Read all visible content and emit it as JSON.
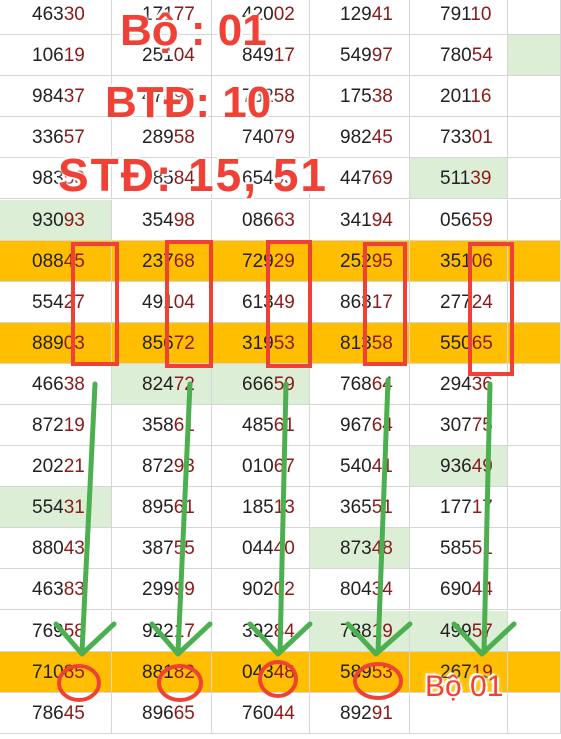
{
  "rows": [
    [
      "46330",
      "17177",
      "42002",
      "12941",
      "79110"
    ],
    [
      "10619",
      "25104",
      "84917",
      "54997",
      "78054"
    ],
    [
      "98437",
      "47895",
      "78258",
      "17538",
      "20116"
    ],
    [
      "33657",
      "28958",
      "74079",
      "98245",
      "73301"
    ],
    [
      "98353",
      "88584",
      "65493",
      "44769",
      "51139"
    ],
    [
      "93093",
      "35498",
      "08663",
      "34194",
      "05659"
    ],
    [
      "08845",
      "23768",
      "72929",
      "25295",
      "35106"
    ],
    [
      "55427",
      "49104",
      "61349",
      "86317",
      "27724"
    ],
    [
      "88903",
      "85672",
      "31953",
      "81358",
      "55065"
    ],
    [
      "46638",
      "82472",
      "66659",
      "76864",
      "29436"
    ],
    [
      "87219",
      "35861",
      "48561",
      "96764",
      "30775"
    ],
    [
      "20221",
      "87293",
      "01067",
      "54041",
      "93649"
    ],
    [
      "55431",
      "89561",
      "18513",
      "36551",
      "17717"
    ],
    [
      "88043",
      "38755",
      "04440",
      "87348",
      "58551"
    ],
    [
      "46383",
      "29999",
      "90202",
      "80434",
      "69044"
    ],
    [
      "76958",
      "92217",
      "39284",
      "78819",
      "49957"
    ],
    [
      "71085",
      "88182",
      "04348",
      "58953",
      "26719"
    ],
    [
      "78645",
      "89665",
      "76044",
      "89291",
      ""
    ]
  ],
  "highlighted_rows": [
    6,
    8,
    16
  ],
  "green_cells": [
    [
      1,
      5
    ],
    [
      4,
      4
    ],
    [
      5,
      0
    ],
    [
      9,
      1
    ],
    [
      9,
      2
    ],
    [
      11,
      4
    ],
    [
      12,
      0
    ],
    [
      13,
      3
    ],
    [
      15,
      3
    ],
    [
      15,
      4
    ],
    [
      16,
      4
    ]
  ],
  "overlay": {
    "title": "Bộ : 01",
    "btd": "BTĐ: 10",
    "std": "STĐ: 15, 51",
    "footer_label": "Bộ 01"
  },
  "colors": {
    "accent": "#ef4135",
    "arrow": "#4caf50",
    "row_highlight": "#ffbf00",
    "green_cell": "#dcefd6",
    "digit_highlight": "#8b1a1a"
  }
}
